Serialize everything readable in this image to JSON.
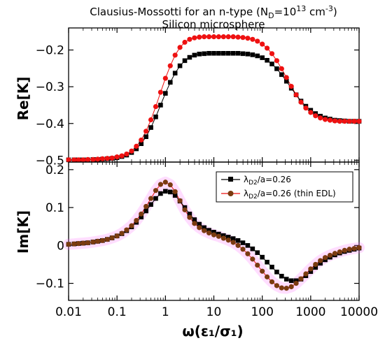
{
  "title": {
    "line1_pre": "Clausius-Mossotti for an n-type (N",
    "line1_sub": "D",
    "line1_mid": "=10",
    "line1_sup": "13",
    "line1_post": " cm",
    "line1_sup2": "-3",
    "line1_close": ")",
    "line2": "Silicon microsphere"
  },
  "chart_data": [
    {
      "type": "line",
      "ylabel": "Re[K]",
      "xscale": "log",
      "xlim": [
        0.01,
        10000
      ],
      "ylim": [
        -0.505,
        -0.14
      ],
      "yticks": [
        -0.5,
        -0.4,
        -0.3,
        -0.2
      ],
      "ytick_labels": [
        "−0.5",
        "−0.4",
        "−0.3",
        "−0.2"
      ],
      "grid": false,
      "series": [
        {
          "name": "λD2/a=0.26",
          "color": "#000000",
          "marker": "square",
          "x": [
            0.01,
            0.013,
            0.016,
            0.02,
            0.025,
            0.032,
            0.04,
            0.05,
            0.063,
            0.079,
            0.1,
            0.126,
            0.158,
            0.2,
            0.251,
            0.316,
            0.398,
            0.501,
            0.631,
            0.794,
            1.0,
            1.259,
            1.585,
            1.995,
            2.512,
            3.162,
            3.981,
            5.012,
            6.31,
            7.943,
            10.0,
            12.59,
            15.85,
            19.95,
            25.12,
            31.62,
            39.81,
            50.12,
            63.1,
            79.43,
            100.0,
            125.9,
            158.5,
            199.5,
            251.2,
            316.2,
            398.1,
            501.2,
            631.0,
            794.3,
            1000.0,
            1259.0,
            1585.0,
            1995.0,
            2512.0,
            3162.0,
            3981.0,
            5012.0,
            6310.0,
            7943.0,
            10000.0
          ],
          "y": [
            -0.499,
            -0.499,
            -0.499,
            -0.499,
            -0.499,
            -0.498,
            -0.498,
            -0.497,
            -0.496,
            -0.495,
            -0.493,
            -0.49,
            -0.486,
            -0.479,
            -0.469,
            -0.455,
            -0.436,
            -0.411,
            -0.382,
            -0.35,
            -0.318,
            -0.288,
            -0.263,
            -0.243,
            -0.229,
            -0.22,
            -0.214,
            -0.211,
            -0.21,
            -0.209,
            -0.209,
            -0.209,
            -0.209,
            -0.209,
            -0.209,
            -0.209,
            -0.21,
            -0.211,
            -0.213,
            -0.216,
            -0.221,
            -0.228,
            -0.238,
            -0.251,
            -0.267,
            -0.285,
            -0.304,
            -0.322,
            -0.339,
            -0.353,
            -0.364,
            -0.373,
            -0.38,
            -0.385,
            -0.388,
            -0.391,
            -0.392,
            -0.393,
            -0.394,
            -0.394,
            -0.394
          ]
        },
        {
          "name": "λD2/a=0.26 (thin EDL)",
          "color": "#ee1111",
          "marker": "circle",
          "x": [
            0.01,
            0.013,
            0.016,
            0.02,
            0.025,
            0.032,
            0.04,
            0.05,
            0.063,
            0.079,
            0.1,
            0.126,
            0.158,
            0.2,
            0.251,
            0.316,
            0.398,
            0.501,
            0.631,
            0.794,
            1.0,
            1.259,
            1.585,
            1.995,
            2.512,
            3.162,
            3.981,
            5.012,
            6.31,
            7.943,
            10.0,
            12.59,
            15.85,
            19.95,
            25.12,
            31.62,
            39.81,
            50.12,
            63.1,
            79.43,
            100.0,
            125.9,
            158.5,
            199.5,
            251.2,
            316.2,
            398.1,
            501.2,
            631.0,
            794.3,
            1000.0,
            1259.0,
            1585.0,
            1995.0,
            2512.0,
            3162.0,
            3981.0,
            5012.0,
            6310.0,
            7943.0,
            10000.0
          ],
          "y": [
            -0.499,
            -0.499,
            -0.499,
            -0.499,
            -0.498,
            -0.498,
            -0.497,
            -0.496,
            -0.495,
            -0.494,
            -0.491,
            -0.488,
            -0.483,
            -0.475,
            -0.462,
            -0.445,
            -0.421,
            -0.39,
            -0.354,
            -0.315,
            -0.277,
            -0.243,
            -0.214,
            -0.193,
            -0.179,
            -0.171,
            -0.167,
            -0.165,
            -0.164,
            -0.164,
            -0.164,
            -0.164,
            -0.164,
            -0.164,
            -0.164,
            -0.165,
            -0.166,
            -0.168,
            -0.171,
            -0.176,
            -0.184,
            -0.195,
            -0.21,
            -0.229,
            -0.251,
            -0.275,
            -0.299,
            -0.322,
            -0.342,
            -0.358,
            -0.37,
            -0.379,
            -0.385,
            -0.389,
            -0.391,
            -0.393,
            -0.394,
            -0.394,
            -0.394,
            -0.394,
            -0.394
          ]
        }
      ]
    },
    {
      "type": "line",
      "ylabel": "Im[K]",
      "xlabel": "ω(ε₁/σ₁)",
      "xscale": "log",
      "xlim": [
        0.01,
        10000
      ],
      "ylim": [
        -0.145,
        0.22
      ],
      "yticks": [
        -0.1,
        0,
        0.1,
        0.2
      ],
      "ytick_labels": [
        "−0.1",
        "0",
        "0.1",
        "0.2"
      ],
      "xticks": [
        0.01,
        0.1,
        1,
        10,
        100,
        1000,
        10000
      ],
      "xtick_labels": [
        "0.01",
        "0.1",
        "1",
        "10",
        "100",
        "1000",
        "10000"
      ],
      "grid": false,
      "legend": "top-right",
      "series": [
        {
          "name": "λD2/a=0.26",
          "legend_label": {
            "pre": "λ",
            "sub": "D2",
            "post": "/a=0.26"
          },
          "color": "#000000",
          "marker": "square",
          "x": [
            0.01,
            0.013,
            0.016,
            0.02,
            0.025,
            0.032,
            0.04,
            0.05,
            0.063,
            0.079,
            0.1,
            0.126,
            0.158,
            0.2,
            0.251,
            0.316,
            0.398,
            0.501,
            0.631,
            0.794,
            1.0,
            1.259,
            1.585,
            1.995,
            2.512,
            3.162,
            3.981,
            5.012,
            6.31,
            7.943,
            10.0,
            12.59,
            15.85,
            19.95,
            25.12,
            31.62,
            39.81,
            50.12,
            63.1,
            79.43,
            100.0,
            125.9,
            158.5,
            199.5,
            251.2,
            316.2,
            398.1,
            501.2,
            631.0,
            794.3,
            1000.0,
            1259.0,
            1585.0,
            1995.0,
            2512.0,
            3162.0,
            3981.0,
            5012.0,
            6310.0,
            7943.0,
            10000.0
          ],
          "y": [
            0.003,
            0.004,
            0.005,
            0.006,
            0.007,
            0.009,
            0.011,
            0.013,
            0.016,
            0.02,
            0.025,
            0.031,
            0.039,
            0.049,
            0.061,
            0.075,
            0.091,
            0.108,
            0.124,
            0.137,
            0.143,
            0.141,
            0.132,
            0.117,
            0.1,
            0.083,
            0.068,
            0.056,
            0.047,
            0.04,
            0.035,
            0.03,
            0.026,
            0.022,
            0.018,
            0.013,
            0.007,
            0.0,
            -0.009,
            -0.019,
            -0.031,
            -0.044,
            -0.057,
            -0.07,
            -0.081,
            -0.089,
            -0.093,
            -0.093,
            -0.089,
            -0.08,
            -0.069,
            -0.058,
            -0.047,
            -0.038,
            -0.031,
            -0.025,
            -0.02,
            -0.016,
            -0.013,
            -0.01,
            -0.007
          ]
        },
        {
          "name": "λD2/a=0.26 (thin EDL)",
          "legend_label": {
            "pre": "λ",
            "sub": "D2",
            "post": "/a=0.26 (thin EDL)"
          },
          "color": "#7a3b10",
          "marker": "circle",
          "x": [
            0.01,
            0.013,
            0.016,
            0.02,
            0.025,
            0.032,
            0.04,
            0.05,
            0.063,
            0.079,
            0.1,
            0.126,
            0.158,
            0.2,
            0.251,
            0.316,
            0.398,
            0.501,
            0.631,
            0.794,
            1.0,
            1.259,
            1.585,
            1.995,
            2.512,
            3.162,
            3.981,
            5.012,
            6.31,
            7.943,
            10.0,
            12.59,
            15.85,
            19.95,
            25.12,
            31.62,
            39.81,
            50.12,
            63.1,
            79.43,
            100.0,
            125.9,
            158.5,
            199.5,
            251.2,
            316.2,
            398.1,
            501.2,
            631.0,
            794.3,
            1000.0,
            1259.0,
            1585.0,
            1995.0,
            2512.0,
            3162.0,
            3981.0,
            5012.0,
            6310.0,
            7943.0,
            10000.0
          ],
          "y": [
            0.003,
            0.004,
            0.005,
            0.006,
            0.007,
            0.009,
            0.011,
            0.013,
            0.016,
            0.02,
            0.025,
            0.032,
            0.041,
            0.052,
            0.066,
            0.083,
            0.103,
            0.124,
            0.145,
            0.161,
            0.167,
            0.16,
            0.142,
            0.118,
            0.094,
            0.074,
            0.058,
            0.047,
            0.039,
            0.033,
            0.028,
            0.024,
            0.019,
            0.014,
            0.008,
            0.0,
            -0.01,
            -0.022,
            -0.036,
            -0.052,
            -0.068,
            -0.083,
            -0.096,
            -0.106,
            -0.112,
            -0.113,
            -0.109,
            -0.1,
            -0.088,
            -0.075,
            -0.062,
            -0.05,
            -0.04,
            -0.032,
            -0.026,
            -0.021,
            -0.017,
            -0.013,
            -0.01,
            -0.008,
            -0.006
          ]
        }
      ]
    }
  ]
}
